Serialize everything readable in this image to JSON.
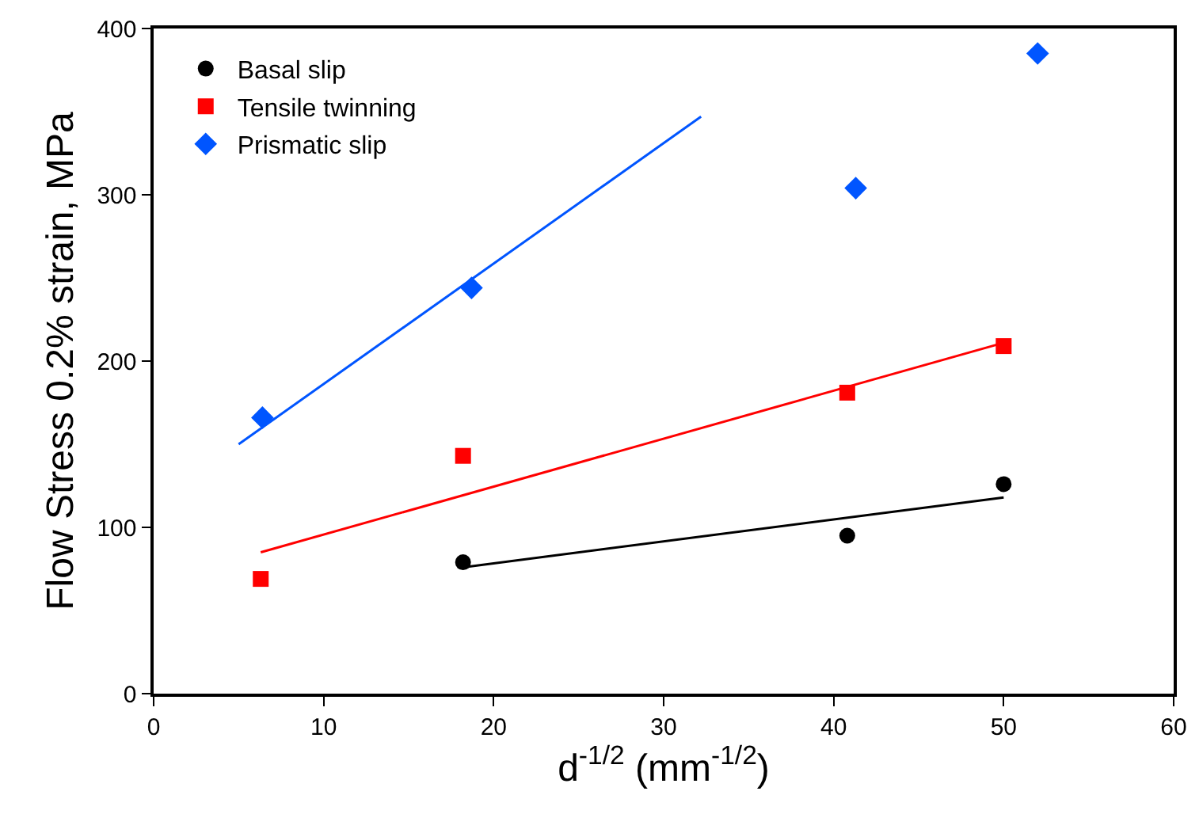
{
  "chart_data": {
    "type": "scatter",
    "xlabel": "d$^{-1/2}$ (mm$^{-1/2}$)",
    "ylabel": "Flow Stress 0.2% strain, MPa",
    "xlim": [
      0,
      60
    ],
    "xticks": [
      0,
      10,
      20,
      30,
      40,
      50,
      60
    ],
    "ylim": [
      0,
      400
    ],
    "yticks": [
      0,
      100,
      200,
      300,
      400
    ],
    "legend": "top left",
    "series": [
      {
        "name": "Basal slip",
        "color": "#000000",
        "marker": "circle",
        "x": [
          18.2,
          40.8,
          50
        ],
        "values": [
          79,
          95,
          126
        ]
      },
      {
        "name": "Tensile twinning",
        "color": "#ff0000",
        "marker": "square",
        "x": [
          6.3,
          18.2,
          40.8,
          50
        ],
        "values": [
          69,
          143,
          181,
          209
        ]
      },
      {
        "name": "Prismatic slip",
        "color": "#0055ff",
        "marker": "diamond",
        "x": [
          6.4,
          18.7,
          41.3,
          52
        ],
        "values": [
          166,
          244,
          304,
          385
        ]
      },
      {
        "type": "line",
        "color": "#000000",
        "x": [
          18.2,
          50
        ],
        "values": [
          76,
          118
        ],
        "line_style": "solid"
      },
      {
        "type": "line",
        "color": "#ff0000",
        "x": [
          6.3,
          50
        ],
        "values": [
          85,
          211
        ],
        "line_style": "solid"
      },
      {
        "type": "line",
        "color": "#0055ff",
        "x": [
          5,
          32.2
        ],
        "values": [
          150,
          347
        ],
        "line_style": "solid"
      }
    ]
  }
}
